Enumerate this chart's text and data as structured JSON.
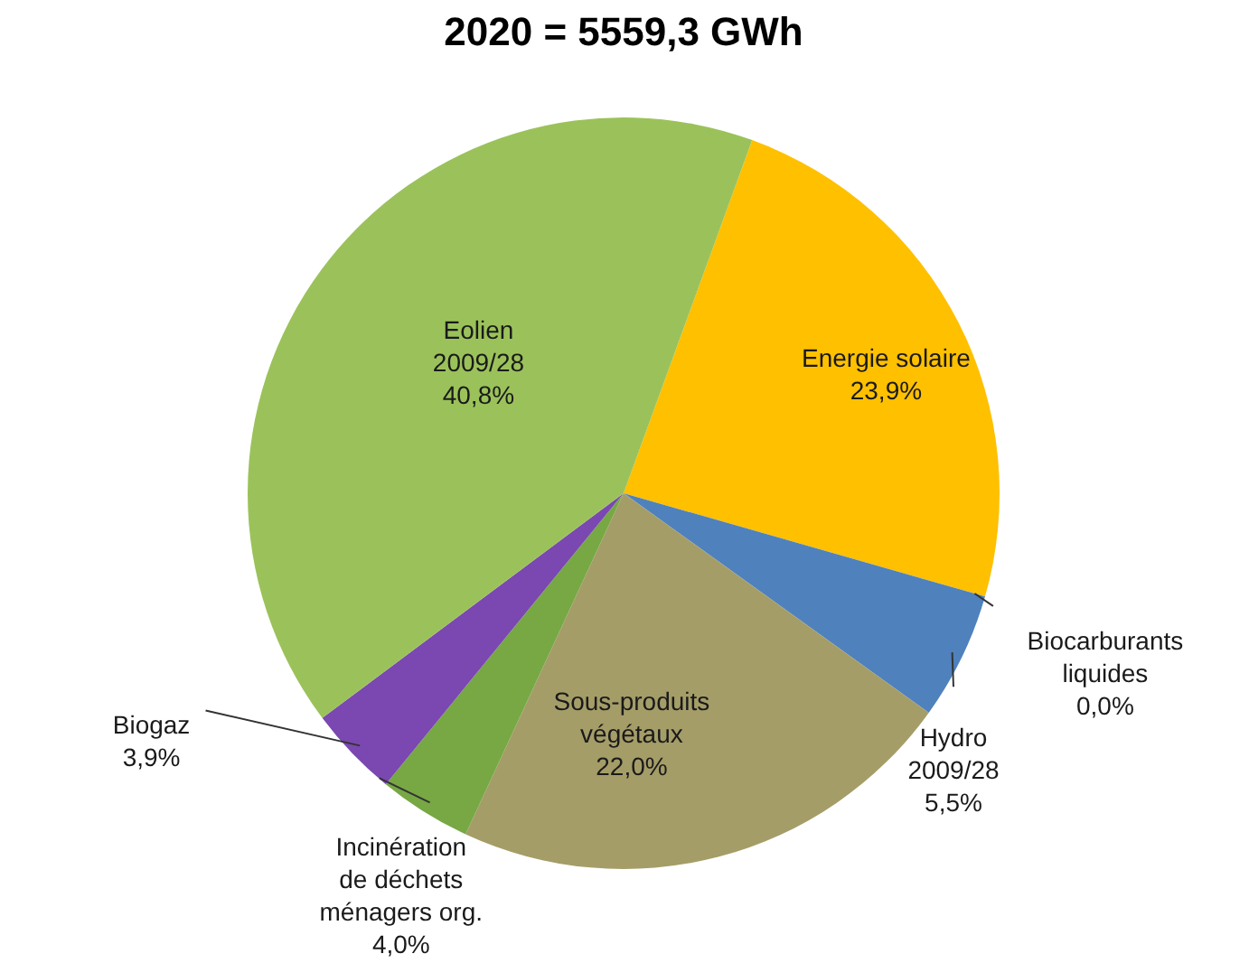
{
  "chart_data": {
    "type": "pie",
    "title": "2020 = 5559,3 GWh",
    "categories": [
      "Energie solaire",
      "Biocarburants liquides",
      "Hydro 2009/28",
      "Sous-produits végétaux",
      "Incinération de déchets ménagers org.",
      "Biogaz",
      "Eolien 2009/28"
    ],
    "values": [
      23.9,
      0.0,
      5.5,
      22.0,
      4.0,
      3.9,
      40.8
    ],
    "value_labels": [
      "23,9%",
      "0,0%",
      "5,5%",
      "22,0%",
      "4,0%",
      "3,9%",
      "40,8%"
    ],
    "colors": [
      "#ffc000",
      "#c0504d",
      "#4f81bd",
      "#a59d68",
      "#77a844",
      "#7a48b0",
      "#9bc25a"
    ]
  }
}
